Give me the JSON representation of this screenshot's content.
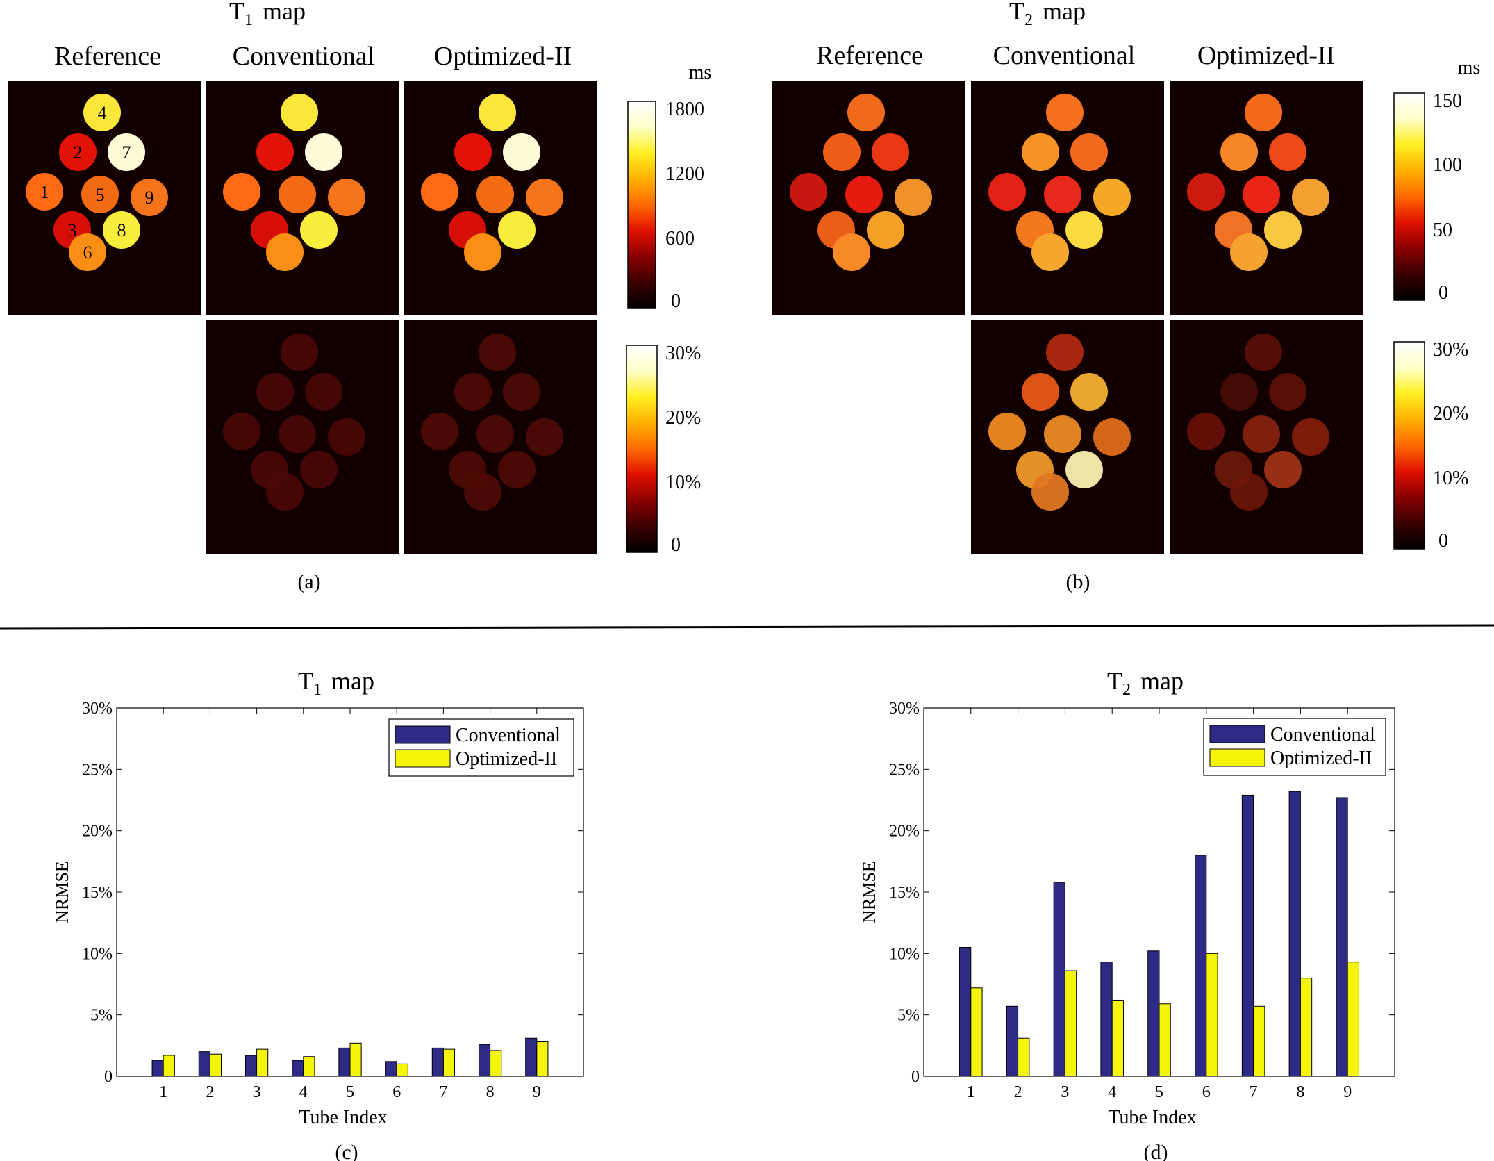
{
  "colors": {
    "map_bg": "#120000",
    "conventional_bar": "#2e2a85",
    "optimized_bar": "#f5f50a",
    "colormap": [
      "#000000",
      "#3a0000",
      "#8a0000",
      "#e01000",
      "#ff6a00",
      "#ffb000",
      "#ffef20",
      "#ffffc8",
      "#ffffff"
    ]
  },
  "panel_a": {
    "title_main": "T",
    "title_sub": "1",
    "title_rest": "map",
    "columns": [
      "Reference",
      "Conventional",
      "Optimized-II"
    ],
    "tube_numbers": [
      "1",
      "2",
      "3",
      "4",
      "5",
      "6",
      "7",
      "8",
      "9"
    ],
    "value_colorbar": {
      "unit": "ms",
      "ticks": [
        "1800",
        "1200",
        "600",
        "0"
      ]
    },
    "error_colorbar": {
      "ticks": [
        "30%",
        "20%",
        "10%",
        "0"
      ]
    },
    "caption": "(a)"
  },
  "panel_b": {
    "title_main": "T",
    "title_sub": "2",
    "title_rest": "map",
    "columns": [
      "Reference",
      "Conventional",
      "Optimized-II"
    ],
    "value_colorbar": {
      "unit": "ms",
      "ticks": [
        "150",
        "100",
        "50",
        "0"
      ]
    },
    "error_colorbar": {
      "ticks": [
        "30%",
        "20%",
        "10%",
        "0"
      ]
    },
    "caption": "(b)"
  },
  "chart_data": [
    {
      "type": "bar",
      "title_main": "T",
      "title_sub": "1",
      "title_rest": "map",
      "xlabel": "Tube Index",
      "ylabel": "NRMSE",
      "ylim": [
        0,
        30
      ],
      "yticks": [
        "0",
        "5%",
        "10%",
        "15%",
        "20%",
        "25%",
        "30%"
      ],
      "categories": [
        "1",
        "2",
        "3",
        "4",
        "5",
        "6",
        "7",
        "8",
        "9"
      ],
      "series": [
        {
          "name": "Conventional",
          "values": [
            1.3,
            2.0,
            1.7,
            1.3,
            2.3,
            1.2,
            2.3,
            2.6,
            3.1
          ]
        },
        {
          "name": "Optimized-II",
          "values": [
            1.7,
            1.8,
            2.2,
            1.6,
            2.7,
            1.0,
            2.2,
            2.1,
            2.8
          ]
        }
      ],
      "legend": "top-right",
      "caption": "(c)"
    },
    {
      "type": "bar",
      "title_main": "T",
      "title_sub": "2",
      "title_rest": "map",
      "xlabel": "Tube Index",
      "ylabel": "NRMSE",
      "ylim": [
        0,
        30
      ],
      "yticks": [
        "0",
        "5%",
        "10%",
        "15%",
        "20%",
        "25%",
        "30%"
      ],
      "categories": [
        "1",
        "2",
        "3",
        "4",
        "5",
        "6",
        "7",
        "8",
        "9"
      ],
      "series": [
        {
          "name": "Conventional",
          "values": [
            10.5,
            5.7,
            15.8,
            9.3,
            10.2,
            18.0,
            22.9,
            23.2,
            22.7
          ]
        },
        {
          "name": "Optimized-II",
          "values": [
            7.2,
            3.1,
            8.6,
            6.2,
            5.9,
            10.0,
            5.7,
            8.0,
            9.3
          ]
        }
      ],
      "legend": "top-right",
      "caption": "(d)"
    }
  ]
}
